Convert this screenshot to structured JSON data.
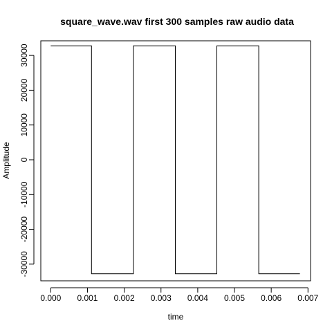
{
  "chart_data": {
    "type": "line",
    "title": "square_wave.wav first 300 samples raw audio data",
    "xlabel": "time",
    "ylabel": "Amplitude",
    "xlim": [
      -0.00027,
      0.00707
    ],
    "ylim": [
      -34800,
      34200
    ],
    "x_ticks": [
      0.0,
      0.001,
      0.002,
      0.003,
      0.004,
      0.005,
      0.006,
      0.007
    ],
    "x_tick_labels": [
      "0.000",
      "0.001",
      "0.002",
      "0.003",
      "0.004",
      "0.005",
      "0.006",
      "0.007"
    ],
    "y_ticks": [
      -30000,
      -20000,
      -10000,
      0,
      10000,
      20000,
      30000
    ],
    "y_tick_labels": [
      "-30000",
      "-20000",
      "-10000",
      "0",
      "10000",
      "20000",
      "30000"
    ],
    "grid": false,
    "series": [
      {
        "line_color": "#000000",
        "x": [
          0.0,
          0.00111,
          0.00111,
          0.00225,
          0.00225,
          0.00339,
          0.00339,
          0.00452,
          0.00452,
          0.00566,
          0.00566,
          0.00678
        ],
        "y": [
          32767,
          32767,
          -32767,
          -32767,
          32767,
          32767,
          -32767,
          -32767,
          32767,
          32767,
          -32767,
          -32767
        ]
      }
    ]
  }
}
